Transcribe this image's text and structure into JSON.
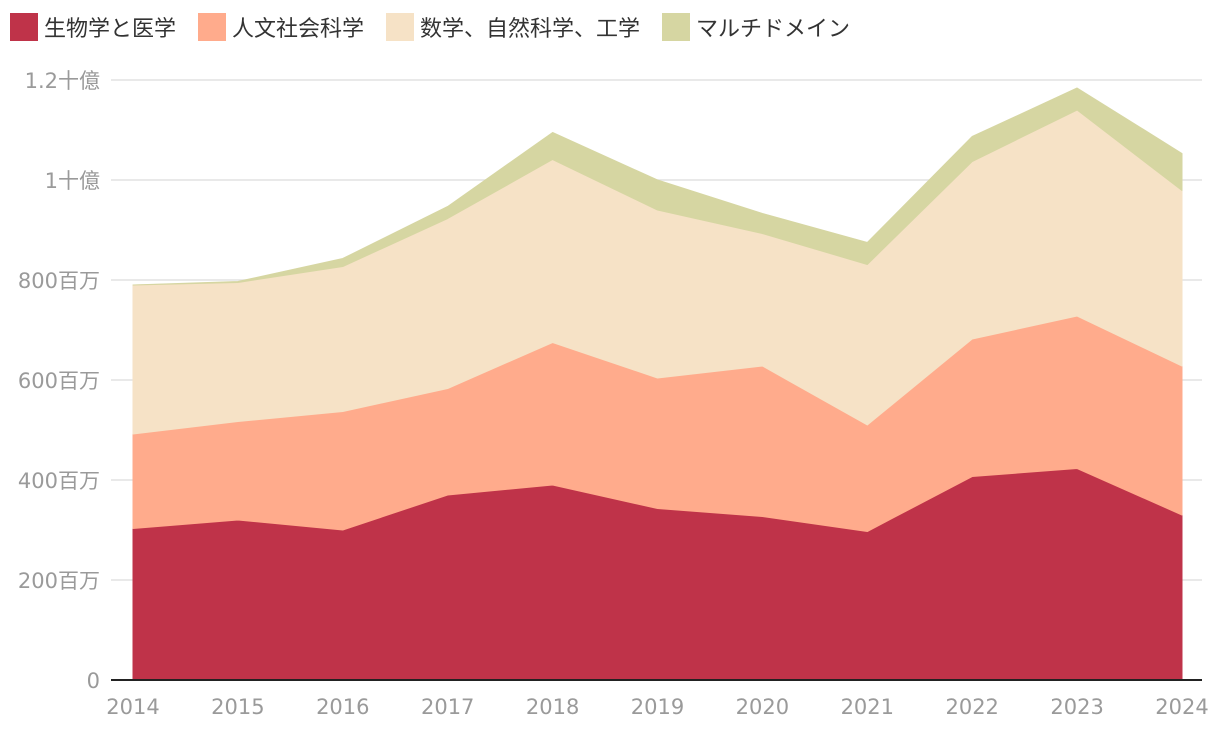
{
  "chart_data": {
    "type": "area",
    "stacked": true,
    "title": "",
    "xlabel": "",
    "ylabel": "",
    "categories": [
      "2014",
      "2015",
      "2016",
      "2017",
      "2018",
      "2019",
      "2020",
      "2021",
      "2022",
      "2023",
      "2024"
    ],
    "ylim": [
      0,
      1200000000
    ],
    "yticks": [
      {
        "value": 0,
        "label": "0"
      },
      {
        "value": 200000000,
        "label": "200百万"
      },
      {
        "value": 400000000,
        "label": "400百万"
      },
      {
        "value": 600000000,
        "label": "600百万"
      },
      {
        "value": 800000000,
        "label": "800百万"
      },
      {
        "value": 1000000000,
        "label": "1十億"
      },
      {
        "value": 1200000000,
        "label": "1.2十億"
      }
    ],
    "grid": true,
    "legend_position": "top-left",
    "series": [
      {
        "name": "生物学と医学",
        "color": "#bf3349",
        "values": [
          303000000,
          320000000,
          300000000,
          370000000,
          390000000,
          343000000,
          327000000,
          297000000,
          407000000,
          423000000,
          330000000
        ]
      },
      {
        "name": "人文社会科学",
        "color": "#ffab8c",
        "values": [
          189000000,
          197000000,
          237000000,
          213000000,
          285000000,
          261000000,
          301000000,
          213000000,
          275000000,
          305000000,
          298000000
        ]
      },
      {
        "name": "数学、自然科学、工学",
        "color": "#f6e2c6",
        "values": [
          298000000,
          278000000,
          290000000,
          340000000,
          366000000,
          336000000,
          265000000,
          321000000,
          355000000,
          412000000,
          351000000
        ]
      },
      {
        "name": "マルチドメイン",
        "color": "#d6d6a2",
        "values": [
          0,
          2000000,
          16000000,
          24000000,
          54000000,
          60000000,
          40000000,
          44000000,
          50000000,
          44000000,
          74000000
        ]
      }
    ]
  }
}
